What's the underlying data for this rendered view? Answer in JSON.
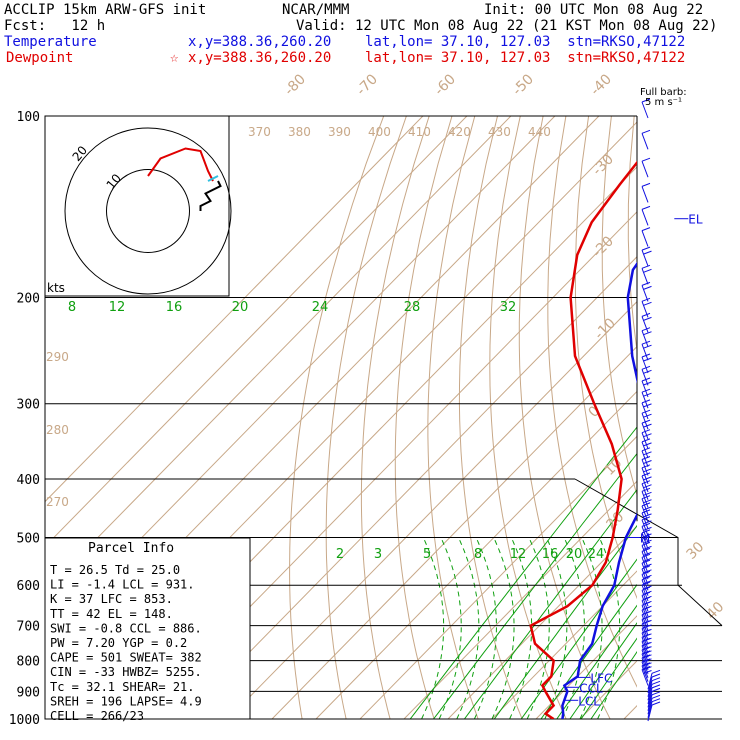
{
  "header": {
    "line1_left": "ACCLIP 15km ARW-GFS init",
    "line1_mid": "NCAR/MMM",
    "line1_right": "Init: 00 UTC Mon 08 Aug 22",
    "line2_left": "Fcst:   12 h",
    "line2_right": "Valid: 12 UTC Mon 08 Aug 22 (21 KST Mon 08 Aug 22)",
    "line3_left": "Temperature",
    "line3_right": "x,y=388.36,260.20    lat,lon= 37.10, 127.03  stn=RKSO,47122",
    "line4_left": "Dewpoint",
    "line4_star": "☆",
    "line4_right": "x,y=388.36,260.20    lat,lon= 37.10, 127.03  stn=RKSO,47122"
  },
  "colors": {
    "temperature": "#1010e0",
    "dewpoint": "#e00000",
    "mixing_ratio": "#10a010",
    "dry_adiabat": "#c8a888",
    "isotherm": "#c8a888",
    "grid": "#000000"
  },
  "full_barb": {
    "line1": "Full barb:",
    "line2": "5 m s⁻¹"
  },
  "hodo_units": "kts",
  "hodo_ring_labels": [
    "10",
    "20"
  ],
  "parcel_info": {
    "title": "Parcel Info",
    "rows": [
      "T  =   26.5 Td =  25.0",
      "LI =   -1.4 LCL =  931.",
      "K  =     37 LFC =  853.",
      "TT =     42 EL  =  148.",
      "SWI =  -0.8 CCL =  886.",
      "PW =   7.20 YGP =   0.2",
      "CAPE =  501 SWEAT=  382",
      "CIN =   -33 HWBZ= 5255.",
      "Tc =   32.1 SHEAR=  21.",
      "SREH =  196 LAPSE=  4.9",
      "CELL = 266/23"
    ]
  },
  "chart_data": {
    "type": "line",
    "title": "",
    "xlabel": "",
    "ylabel": "",
    "pressure_levels": [
      100,
      200,
      300,
      400,
      500,
      600,
      700,
      800,
      900,
      1000
    ],
    "pressure_labels": [
      "100",
      "200",
      "300",
      "400",
      "500",
      "600",
      "700",
      "800",
      "900",
      "1000"
    ],
    "isotherm_labels": [
      "-80",
      "-70",
      "-60",
      "-50",
      "-40",
      "-30",
      "-20",
      "-10",
      "0",
      "10",
      "20",
      "30",
      "40"
    ],
    "theta_labels_top": [
      "370",
      "380",
      "390",
      "400",
      "410",
      "420",
      "430",
      "440"
    ],
    "theta_labels_left": [
      "290",
      "280",
      "270"
    ],
    "mixing_ratio_labels_upper": [
      "8",
      "12",
      "16",
      "20",
      "24",
      "28",
      "32"
    ],
    "mixing_ratio_labels_lower": [
      "2",
      "3",
      "5",
      "8",
      "12",
      "16",
      "20",
      "24"
    ],
    "markers": [
      {
        "label": "EL",
        "p": 148
      },
      {
        "label": "M",
        "p": 500
      },
      {
        "label": "LFC",
        "p": 853
      },
      {
        "label": "CCL",
        "p": 886
      },
      {
        "label": "LCL",
        "p": 931
      }
    ],
    "series": [
      {
        "name": "Temperature",
        "points": [
          [
            100,
            -67
          ],
          [
            120,
            -62
          ],
          [
            140,
            -60
          ],
          [
            160,
            -60
          ],
          [
            180,
            -58
          ],
          [
            200,
            -53
          ],
          [
            250,
            -39
          ],
          [
            300,
            -26
          ],
          [
            350,
            -16
          ],
          [
            400,
            -8
          ],
          [
            450,
            -3
          ],
          [
            500,
            0
          ],
          [
            550,
            4
          ],
          [
            600,
            8
          ],
          [
            650,
            10
          ],
          [
            700,
            13
          ],
          [
            750,
            16
          ],
          [
            800,
            17
          ],
          [
            850,
            20
          ],
          [
            880,
            19
          ],
          [
            900,
            21
          ],
          [
            950,
            23
          ],
          [
            980,
            25
          ],
          [
            1000,
            26
          ]
        ]
      },
      {
        "name": "Dewpoint",
        "points": [
          [
            100,
            -83
          ],
          [
            130,
            -80
          ],
          [
            150,
            -78
          ],
          [
            170,
            -74
          ],
          [
            200,
            -66
          ],
          [
            250,
            -52
          ],
          [
            300,
            -37
          ],
          [
            350,
            -24
          ],
          [
            400,
            -14
          ],
          [
            450,
            -8
          ],
          [
            500,
            -3
          ],
          [
            550,
            1
          ],
          [
            600,
            3
          ],
          [
            650,
            2
          ],
          [
            700,
            -2
          ],
          [
            750,
            3
          ],
          [
            800,
            11
          ],
          [
            850,
            14
          ],
          [
            880,
            14
          ],
          [
            900,
            16
          ],
          [
            950,
            21
          ],
          [
            980,
            21
          ],
          [
            1000,
            24
          ]
        ]
      }
    ],
    "hodograph": {
      "ring_speeds_kts": [
        10,
        20
      ],
      "red_trace": [
        [
          0,
          2
        ],
        [
          5,
          9
        ],
        [
          15,
          13
        ],
        [
          21,
          12
        ],
        [
          24,
          4
        ],
        [
          26,
          0
        ]
      ],
      "cyan_trace": [
        [
          24,
          0
        ],
        [
          26,
          1
        ],
        [
          28,
          2
        ]
      ],
      "black_trace": [
        [
          28,
          0
        ],
        [
          29,
          -2
        ],
        [
          23,
          -5
        ],
        [
          25,
          -8
        ],
        [
          21,
          -10
        ],
        [
          21,
          -12
        ]
      ]
    },
    "wind_barbs": {
      "count": 72,
      "p_top": 100,
      "p_bottom": 1000
    }
  }
}
